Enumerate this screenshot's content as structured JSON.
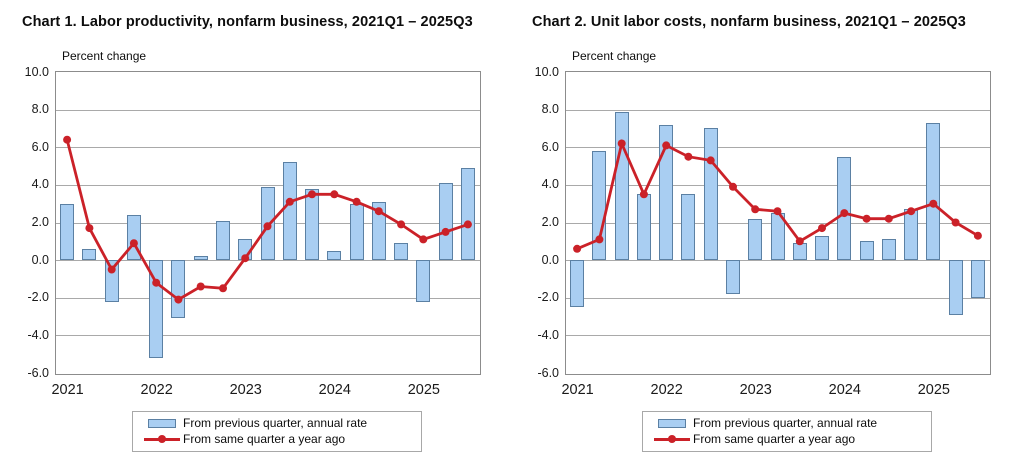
{
  "legend": {
    "bar_label": "From previous quarter, annual rate",
    "line_label": "From same quarter a year ago"
  },
  "axis": {
    "ylabel": "Percent change",
    "ytick_values": [
      10,
      8,
      6,
      4,
      2,
      0,
      -2,
      -4,
      -6
    ],
    "ytick_labels": [
      "10.0",
      "8.0",
      "6.0",
      "4.0",
      "2.0",
      "0.0",
      "-2.0",
      "-4.0",
      "-6.0"
    ],
    "x_years": [
      "2021",
      "2022",
      "2023",
      "2024",
      "2025"
    ]
  },
  "colors": {
    "bar_fill": "#a9cef2",
    "bar_border": "#5b80a3",
    "line": "#cb2128",
    "grid": "#a9a9a9",
    "plot_border": "#8c8c8c"
  },
  "chart_data": [
    {
      "type": "bar+line",
      "title": "Chart 1. Labor productivity, nonfarm business, 2021Q1 – 2025Q3",
      "ylabel": "Percent change",
      "ylim": [
        -6,
        10
      ],
      "grid": true,
      "legend_position": "bottom",
      "categories": [
        "2021Q1",
        "2021Q2",
        "2021Q3",
        "2021Q4",
        "2022Q1",
        "2022Q2",
        "2022Q3",
        "2022Q4",
        "2023Q1",
        "2023Q2",
        "2023Q3",
        "2023Q4",
        "2024Q1",
        "2024Q2",
        "2024Q3",
        "2024Q4",
        "2025Q1",
        "2025Q2",
        "2025Q3"
      ],
      "series": [
        {
          "name": "From previous quarter, annual rate",
          "type": "bar",
          "values": [
            3.0,
            0.6,
            -2.2,
            2.4,
            -5.2,
            -3.1,
            0.2,
            2.1,
            1.1,
            3.9,
            5.2,
            3.8,
            0.5,
            3.0,
            3.1,
            0.9,
            -2.2,
            4.1,
            4.9
          ]
        },
        {
          "name": "From same quarter a year ago",
          "type": "line",
          "values": [
            6.4,
            1.7,
            -0.5,
            0.9,
            -1.2,
            -2.1,
            -1.4,
            -1.5,
            0.1,
            1.8,
            3.1,
            3.5,
            3.5,
            3.1,
            2.6,
            1.9,
            1.1,
            1.5,
            1.9
          ]
        }
      ]
    },
    {
      "type": "bar+line",
      "title": "Chart 2. Unit labor costs, nonfarm business, 2021Q1 – 2025Q3",
      "ylabel": "Percent change",
      "ylim": [
        -6,
        10
      ],
      "grid": true,
      "legend_position": "bottom",
      "categories": [
        "2021Q1",
        "2021Q2",
        "2021Q3",
        "2021Q4",
        "2022Q1",
        "2022Q2",
        "2022Q3",
        "2022Q4",
        "2023Q1",
        "2023Q2",
        "2023Q3",
        "2023Q4",
        "2024Q1",
        "2024Q2",
        "2024Q3",
        "2024Q4",
        "2025Q1",
        "2025Q2",
        "2025Q3"
      ],
      "series": [
        {
          "name": "From previous quarter, annual rate",
          "type": "bar",
          "values": [
            -2.5,
            5.8,
            7.9,
            3.5,
            7.2,
            3.5,
            7.0,
            -1.8,
            2.2,
            2.5,
            0.9,
            1.3,
            5.5,
            1.0,
            1.1,
            2.7,
            7.3,
            -2.9,
            -2.0
          ]
        },
        {
          "name": "From same quarter a year ago",
          "type": "line",
          "values": [
            0.6,
            1.1,
            6.2,
            3.5,
            6.1,
            5.5,
            5.3,
            3.9,
            2.7,
            2.6,
            1.0,
            1.7,
            2.5,
            2.2,
            2.2,
            2.6,
            3.0,
            2.0,
            1.3
          ]
        }
      ]
    }
  ]
}
